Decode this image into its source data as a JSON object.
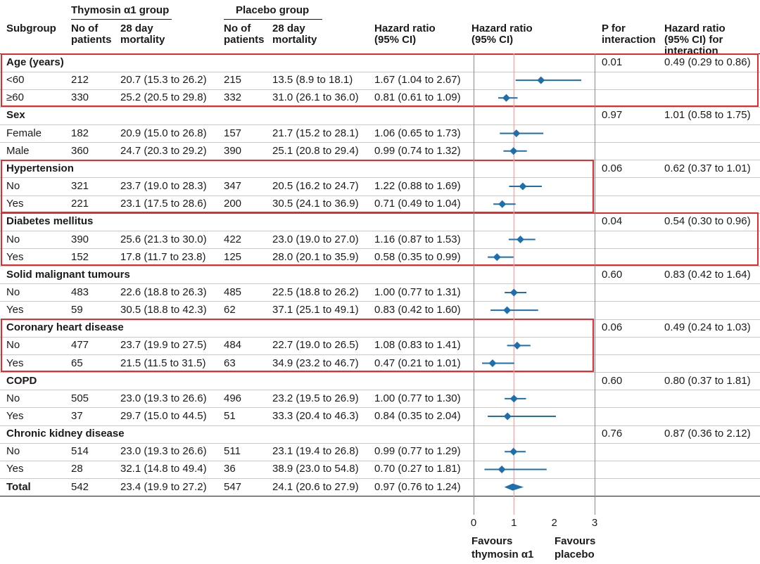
{
  "headers": {
    "group_thymosin": "Thymosin α1 group",
    "group_placebo": "Placebo group",
    "subgroup": "Subgroup",
    "no_patients_line1": "No of",
    "no_patients_line2": "patients",
    "mortality_line1": "28 day",
    "mortality_line2": "mortality",
    "hr_line1": "Hazard ratio",
    "hr_line2": "(95% CI)",
    "hr_plot_line1": "Hazard ratio",
    "hr_plot_line2": "(95% CI)",
    "p_line1": "P for",
    "p_line2": "interaction",
    "hri_line1": "Hazard ratio",
    "hri_line2": "(95% CI) for",
    "hri_line3": "interaction"
  },
  "footer": {
    "favours_left_line1": "Favours",
    "favours_left_line2": "thymosin α1",
    "favours_right_line1": "Favours",
    "favours_right_line2": "placebo"
  },
  "colors": {
    "marker": "#1f6fad",
    "highlight": "#e52b2b",
    "reference_line": "#e8a6a6"
  },
  "chart_data": {
    "type": "forest",
    "xlabel": "",
    "xlim": [
      0,
      3
    ],
    "xticks": [
      0,
      1,
      2,
      3
    ],
    "reference_line": 1,
    "rows": [
      {
        "kind": "header",
        "label": "Age (years)",
        "p": "0.01",
        "hr_int": "0.49 (0.29 to 0.86)",
        "highlight": true
      },
      {
        "kind": "data",
        "label": "<60",
        "n_t": "212",
        "mort_t": "20.7 (15.3 to 26.2)",
        "n_p": "215",
        "mort_p": "13.5 (8.9 to 18.1)",
        "hr_text": "1.67 (1.04 to 2.67)",
        "hr": 1.67,
        "lo": 1.04,
        "hi": 2.67
      },
      {
        "kind": "data",
        "label": "≥60",
        "n_t": "330",
        "mort_t": "25.2 (20.5 to 29.8)",
        "n_p": "332",
        "mort_p": "31.0 (26.1 to 36.0)",
        "hr_text": "0.81 (0.61 to 1.09)",
        "hr": 0.81,
        "lo": 0.61,
        "hi": 1.09
      },
      {
        "kind": "header",
        "label": "Sex",
        "p": "0.97",
        "hr_int": "1.01 (0.58 to 1.75)",
        "highlight": false
      },
      {
        "kind": "data",
        "label": "Female",
        "n_t": "182",
        "mort_t": "20.9 (15.0 to 26.8)",
        "n_p": "157",
        "mort_p": "21.7 (15.2 to 28.1)",
        "hr_text": "1.06 (0.65 to 1.73)",
        "hr": 1.06,
        "lo": 0.65,
        "hi": 1.73
      },
      {
        "kind": "data",
        "label": "Male",
        "n_t": "360",
        "mort_t": "24.7 (20.3 to 29.2)",
        "n_p": "390",
        "mort_p": "25.1 (20.8 to 29.4)",
        "hr_text": "0.99 (0.74 to 1.32)",
        "hr": 0.99,
        "lo": 0.74,
        "hi": 1.32
      },
      {
        "kind": "header",
        "label": "Hypertension",
        "p": "0.06",
        "hr_int": "0.62 (0.37 to 1.01)",
        "highlight": true
      },
      {
        "kind": "data",
        "label": "No",
        "n_t": "321",
        "mort_t": "23.7 (19.0 to 28.3)",
        "n_p": "347",
        "mort_p": "20.5 (16.2 to 24.7)",
        "hr_text": "1.22 (0.88 to 1.69)",
        "hr": 1.22,
        "lo": 0.88,
        "hi": 1.69
      },
      {
        "kind": "data",
        "label": "Yes",
        "n_t": "221",
        "mort_t": "23.1 (17.5 to 28.6)",
        "n_p": "200",
        "mort_p": "30.5 (24.1 to 36.9)",
        "hr_text": "0.71 (0.49 to 1.04)",
        "hr": 0.71,
        "lo": 0.49,
        "hi": 1.04
      },
      {
        "kind": "header",
        "label": "Diabetes mellitus",
        "p": "0.04",
        "hr_int": "0.54 (0.30 to 0.96)",
        "highlight": true
      },
      {
        "kind": "data",
        "label": "No",
        "n_t": "390",
        "mort_t": "25.6 (21.3 to 30.0)",
        "n_p": "422",
        "mort_p": "23.0 (19.0 to 27.0)",
        "hr_text": "1.16 (0.87 to 1.53)",
        "hr": 1.16,
        "lo": 0.87,
        "hi": 1.53
      },
      {
        "kind": "data",
        "label": "Yes",
        "n_t": "152",
        "mort_t": "17.8 (11.7 to 23.8)",
        "n_p": "125",
        "mort_p": "28.0 (20.1 to 35.9)",
        "hr_text": "0.58 (0.35 to 0.99)",
        "hr": 0.58,
        "lo": 0.35,
        "hi": 0.99
      },
      {
        "kind": "header",
        "label": "Solid malignant tumours",
        "p": "0.60",
        "hr_int": "0.83 (0.42 to 1.64)",
        "highlight": false
      },
      {
        "kind": "data",
        "label": "No",
        "n_t": "483",
        "mort_t": "22.6 (18.8 to 26.3)",
        "n_p": "485",
        "mort_p": "22.5 (18.8 to 26.2)",
        "hr_text": "1.00 (0.77 to 1.31)",
        "hr": 1.0,
        "lo": 0.77,
        "hi": 1.31
      },
      {
        "kind": "data",
        "label": "Yes",
        "n_t": "59",
        "mort_t": "30.5 (18.8 to 42.3)",
        "n_p": "62",
        "mort_p": "37.1 (25.1 to 49.1)",
        "hr_text": "0.83 (0.42 to 1.60)",
        "hr": 0.83,
        "lo": 0.42,
        "hi": 1.6
      },
      {
        "kind": "header",
        "label": "Coronary heart disease",
        "p": "0.06",
        "hr_int": "0.49 (0.24 to 1.03)",
        "highlight": true
      },
      {
        "kind": "data",
        "label": "No",
        "n_t": "477",
        "mort_t": "23.7 (19.9 to 27.5)",
        "n_p": "484",
        "mort_p": "22.7 (19.0 to 26.5)",
        "hr_text": "1.08 (0.83 to 1.41)",
        "hr": 1.08,
        "lo": 0.83,
        "hi": 1.41
      },
      {
        "kind": "data",
        "label": "Yes",
        "n_t": "65",
        "mort_t": "21.5 (11.5 to 31.5)",
        "n_p": "63",
        "mort_p": "34.9 (23.2 to 46.7)",
        "hr_text": "0.47 (0.21 to 1.01)",
        "hr": 0.47,
        "lo": 0.21,
        "hi": 1.01
      },
      {
        "kind": "header",
        "label": "COPD",
        "p": "0.60",
        "hr_int": "0.80 (0.37 to 1.81)",
        "highlight": false
      },
      {
        "kind": "data",
        "label": "No",
        "n_t": "505",
        "mort_t": "23.0 (19.3 to 26.6)",
        "n_p": "496",
        "mort_p": "23.2 (19.5 to 26.9)",
        "hr_text": "1.00 (0.77 to 1.30)",
        "hr": 1.0,
        "lo": 0.77,
        "hi": 1.3
      },
      {
        "kind": "data",
        "label": "Yes",
        "n_t": "37",
        "mort_t": "29.7 (15.0 to 44.5)",
        "n_p": "51",
        "mort_p": "33.3 (20.4 to 46.3)",
        "hr_text": "0.84 (0.35 to 2.04)",
        "hr": 0.84,
        "lo": 0.35,
        "hi": 2.04
      },
      {
        "kind": "header",
        "label": "Chronic kidney disease",
        "p": "0.76",
        "hr_int": "0.87 (0.36 to 2.12)",
        "highlight": false
      },
      {
        "kind": "data",
        "label": "No",
        "n_t": "514",
        "mort_t": "23.0 (19.3 to 26.6)",
        "n_p": "511",
        "mort_p": "23.1 (19.4 to 26.8)",
        "hr_text": "0.99 (0.77 to 1.29)",
        "hr": 0.99,
        "lo": 0.77,
        "hi": 1.29
      },
      {
        "kind": "data",
        "label": "Yes",
        "n_t": "28",
        "mort_t": "32.1 (14.8 to 49.4)",
        "n_p": "36",
        "mort_p": "38.9 (23.0 to 54.8)",
        "hr_text": "0.70 (0.27 to 1.81)",
        "hr": 0.7,
        "lo": 0.27,
        "hi": 1.81
      },
      {
        "kind": "total",
        "label": "Total",
        "n_t": "542",
        "mort_t": "23.4 (19.9 to 27.2)",
        "n_p": "547",
        "mort_p": "24.1 (20.6 to 27.9)",
        "hr_text": "0.97 (0.76 to 1.24)",
        "hr": 0.97,
        "lo": 0.76,
        "hi": 1.24
      }
    ]
  }
}
